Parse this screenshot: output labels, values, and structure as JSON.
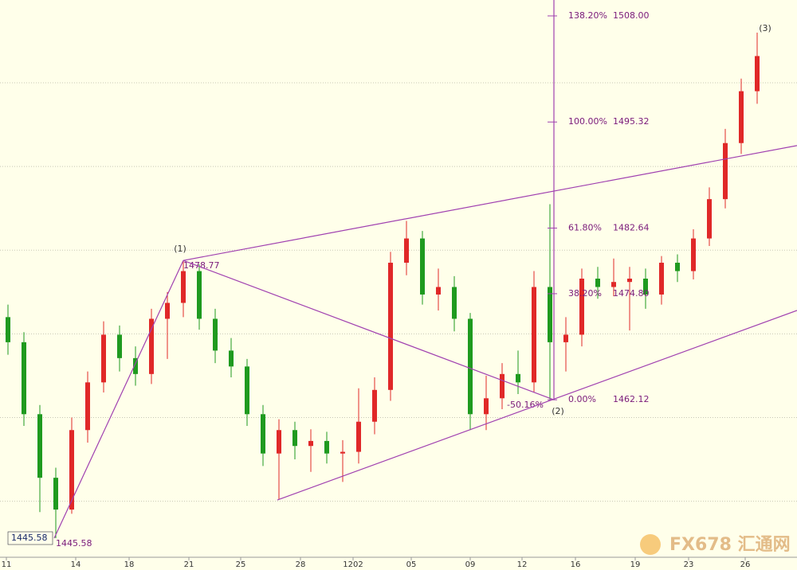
{
  "chart_data": {
    "type": "candlestick",
    "xlim": [
      0,
      100
    ],
    "ylim": [
      1443.3,
      1509.9
    ],
    "xticks": [
      {
        "value": 0.8,
        "label": "11"
      },
      {
        "value": 9.5,
        "label": "14"
      },
      {
        "value": 16.2,
        "label": "18"
      },
      {
        "value": 23.7,
        "label": "21"
      },
      {
        "value": 30.2,
        "label": "25"
      },
      {
        "value": 37.7,
        "label": "28"
      },
      {
        "value": 44.3,
        "label": "1202"
      },
      {
        "value": 51.6,
        "label": "05"
      },
      {
        "value": 59,
        "label": "09"
      },
      {
        "value": 65.5,
        "label": "12"
      },
      {
        "value": 72.2,
        "label": "16"
      },
      {
        "value": 79.7,
        "label": "19"
      },
      {
        "value": 86.4,
        "label": "23"
      },
      {
        "value": 93.5,
        "label": "26"
      }
    ],
    "gridlines": [
      1450,
      1460,
      1470,
      1480,
      1490,
      1500
    ],
    "up_color": "#e02828",
    "down_color": "#1f9a1f",
    "x": [
      1,
      3,
      5,
      7,
      9,
      11,
      13,
      15,
      17,
      19,
      21,
      23,
      25,
      27,
      29,
      31,
      33,
      35,
      37,
      39,
      41,
      43,
      45,
      47,
      49,
      51,
      53,
      55,
      57,
      59,
      61,
      63,
      65,
      67,
      69,
      71,
      73,
      75,
      77,
      79,
      81,
      83,
      85,
      87,
      89,
      91,
      93,
      95
    ],
    "open": [
      1472,
      1469,
      1460.4,
      1452.8,
      1449,
      1458.5,
      1464.2,
      1469.9,
      1467.1,
      1465.2,
      1471.8,
      1473.7,
      1477.5,
      1471.8,
      1468,
      1466.1,
      1460.4,
      1455.7,
      1458.5,
      1456.6,
      1457.2,
      1455.7,
      1455.9,
      1459.5,
      1463.3,
      1478.5,
      1481.4,
      1474.7,
      1475.6,
      1471.8,
      1460.4,
      1462.3,
      1465.2,
      1464.2,
      1475.6,
      1469,
      1469.9,
      1476.6,
      1475.6,
      1476.2,
      1476.6,
      1474.7,
      1478.5,
      1477.5,
      1481.4,
      1486.1,
      1492.8,
      1499
    ],
    "high": [
      1473.5,
      1470.2,
      1461.5,
      1454,
      1460,
      1465.5,
      1471.5,
      1471,
      1468.5,
      1473,
      1475,
      1478.77,
      1478.3,
      1473,
      1469.5,
      1467,
      1461.5,
      1459.8,
      1459.5,
      1458.6,
      1458.3,
      1457.3,
      1463.5,
      1464.8,
      1479.8,
      1483.5,
      1482.3,
      1477.8,
      1476.9,
      1472.5,
      1465,
      1466.5,
      1468,
      1477.5,
      1485.5,
      1472,
      1477.8,
      1478,
      1479,
      1478,
      1477.8,
      1479.3,
      1479.5,
      1482.5,
      1487.5,
      1494.5,
      1500.5,
      1506
    ],
    "low": [
      1467.5,
      1459,
      1448.7,
      1445.58,
      1448.5,
      1457,
      1463,
      1465.5,
      1463.8,
      1464,
      1467,
      1472,
      1470.5,
      1466.5,
      1464.8,
      1459,
      1454.2,
      1450.2,
      1455,
      1453.5,
      1454.5,
      1452.3,
      1454.5,
      1458,
      1462,
      1477,
      1473.5,
      1472.8,
      1470.3,
      1458.5,
      1458.5,
      1461,
      1462.8,
      1463,
      1462.12,
      1465.5,
      1468.5,
      1474.2,
      1474.5,
      1470.4,
      1473,
      1473.5,
      1476.2,
      1476.5,
      1480.5,
      1485,
      1491.5,
      1497.5
    ],
    "close": [
      1469,
      1460.4,
      1452.8,
      1449,
      1458.5,
      1464.2,
      1469.9,
      1467.1,
      1465.2,
      1471.8,
      1473.7,
      1477.5,
      1471.8,
      1468,
      1466.1,
      1460.4,
      1455.7,
      1458.5,
      1456.6,
      1457.2,
      1455.7,
      1455.9,
      1459.5,
      1463.3,
      1478.5,
      1481.4,
      1474.7,
      1475.6,
      1471.8,
      1460.4,
      1462.3,
      1465.2,
      1464.2,
      1475.6,
      1469,
      1469.9,
      1476.6,
      1475.6,
      1476.2,
      1476.6,
      1474.7,
      1478.5,
      1477.5,
      1481.4,
      1486.1,
      1492.8,
      1499,
      1503.2
    ],
    "annotation_color": "#a040b0",
    "trendlines": [
      {
        "x": [
          6.8,
          23
        ],
        "y": [
          1445.58,
          1478.77
        ]
      },
      {
        "x": [
          23,
          69.5
        ],
        "y": [
          1478.77,
          1462.12
        ]
      },
      {
        "x": [
          23,
          100
        ],
        "y": [
          1478.77,
          1492.5
        ]
      },
      {
        "x": [
          34.8,
          100
        ],
        "y": [
          1450.15,
          1472.8
        ]
      },
      {
        "x": [
          69.5,
          69.5
        ],
        "y": [
          1462.12,
          1509.9
        ]
      }
    ],
    "fib_levels": [
      {
        "percent": "138.20%",
        "price": {
          "value": 1508,
          "label": "1508.00"
        }
      },
      {
        "percent": "100.00%",
        "price": 1495.32
      },
      {
        "percent": "61.80%",
        "price": 1482.64
      },
      {
        "percent": "38.20%",
        "price": {
          "value": 1474.8,
          "label": "1474.80"
        }
      },
      {
        "percent": "0.00%",
        "price": 1462.12
      }
    ],
    "extension_label": "-50.16%",
    "wave_labels": [
      "(1)",
      "(2)",
      "(3)"
    ],
    "point_labels": [
      "1478.77",
      "1445.58"
    ],
    "price_box": "1445.58",
    "watermark": "FX678 汇通网"
  }
}
